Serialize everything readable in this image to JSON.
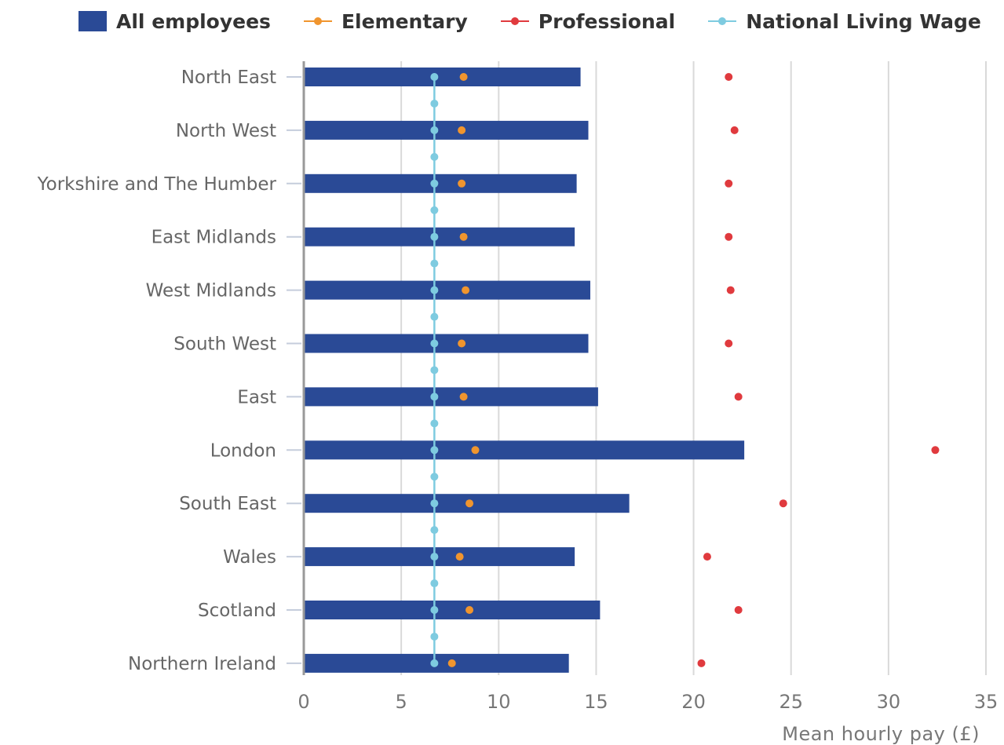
{
  "chart_data": {
    "type": "bar",
    "orientation": "horizontal",
    "categories": [
      "North East",
      "North West",
      "Yorkshire and The Humber",
      "East Midlands",
      "West Midlands",
      "South West",
      "East",
      "London",
      "South East",
      "Wales",
      "Scotland",
      "Northern Ireland"
    ],
    "series": [
      {
        "name": "All employees",
        "kind": "bar",
        "color": "#2a4a96",
        "values": [
          14.2,
          14.6,
          14.0,
          13.9,
          14.7,
          14.6,
          15.1,
          22.6,
          16.7,
          13.9,
          15.2,
          13.6
        ]
      },
      {
        "name": "Elementary",
        "kind": "point",
        "color": "#f0952e",
        "values": [
          8.2,
          8.1,
          8.1,
          8.2,
          8.3,
          8.1,
          8.2,
          8.8,
          8.5,
          8.0,
          8.5,
          7.6
        ]
      },
      {
        "name": "Professional",
        "kind": "point",
        "color": "#e03a3e",
        "values": [
          21.8,
          22.1,
          21.8,
          21.8,
          21.9,
          21.8,
          22.3,
          32.4,
          24.6,
          20.7,
          22.3,
          20.4
        ]
      },
      {
        "name": "National Living Wage",
        "kind": "line",
        "color": "#7ecbe0",
        "value": 6.7
      }
    ],
    "xlabel": "Mean hourly pay (£)",
    "xlim": [
      0,
      35
    ],
    "xticks": [
      "0",
      "5",
      "10",
      "15",
      "20",
      "25",
      "30",
      "35"
    ],
    "grid": "vertical",
    "legend": "top"
  }
}
